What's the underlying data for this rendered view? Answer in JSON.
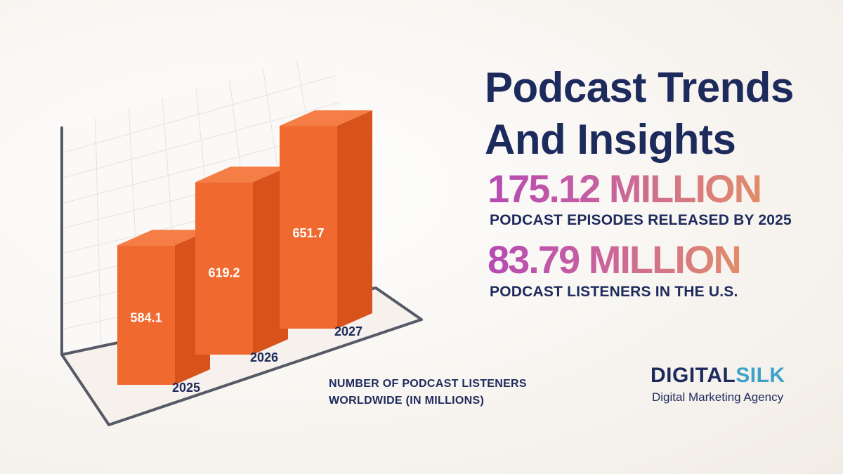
{
  "header": {
    "title": "Podcast Trends And Insights"
  },
  "stats": [
    {
      "value": "175.12 MILLION",
      "label": "PODCAST EPISODES RELEASED BY 2025"
    },
    {
      "value": "83.79 MILLION",
      "label": "PODCAST LISTENERS IN THE U.S."
    }
  ],
  "chart_data": {
    "type": "bar",
    "categories": [
      "2025",
      "2026",
      "2027"
    ],
    "values": [
      584.1,
      619.2,
      651.7
    ],
    "value_labels": [
      "584.1",
      "619.2",
      "651.7"
    ],
    "ylabel": "NUMBER OF PODCAST LISTENERS WORLDWIDE (IN MILLIONS)",
    "grid": true,
    "colors": {
      "front": "#f06a30",
      "side": "#d8521c",
      "top": "#f47e45"
    }
  },
  "brand": {
    "name_part1": "DIGITAL",
    "name_part2": "SILK",
    "tagline": "Digital Marketing Agency"
  }
}
